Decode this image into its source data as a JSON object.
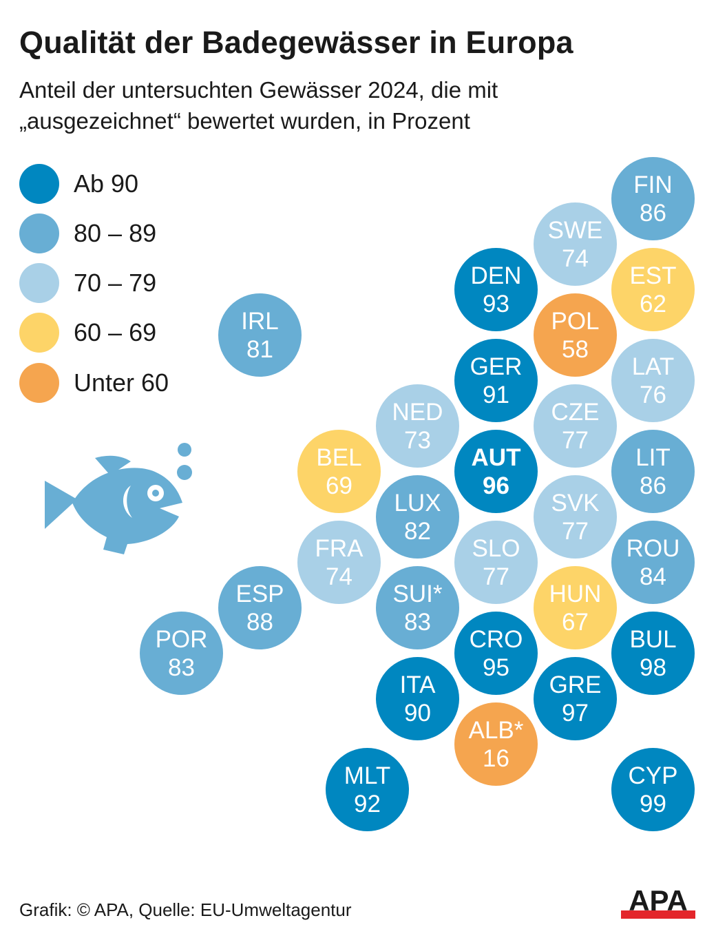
{
  "title": "Qualität der Badegewässer in Europa",
  "subtitle_line1": "Anteil der untersuchten Gewässer 2024, die mit",
  "subtitle_line2": "„ausgezeichnet“ bewertet wurden, in Prozent",
  "source": "Grafik: © APA, Quelle: EU-Umweltagentur",
  "logo_text": "APA",
  "chart_data": {
    "type": "table",
    "title": "Qualität der Badegewässer in Europa",
    "unit": "Prozent",
    "legend": [
      {
        "label": "Ab 90",
        "color": "#0087c0"
      },
      {
        "label": "80 – 89",
        "color": "#68aed4"
      },
      {
        "label": "70 – 79",
        "color": "#a9d0e7"
      },
      {
        "label": "60 – 69",
        "color": "#fdd468"
      },
      {
        "label": "Unter 60",
        "color": "#f5a54f"
      }
    ],
    "countries": [
      {
        "code": "FIN",
        "value": 86
      },
      {
        "code": "SWE",
        "value": 74
      },
      {
        "code": "DEN",
        "value": 93
      },
      {
        "code": "EST",
        "value": 62
      },
      {
        "code": "IRL",
        "value": 81
      },
      {
        "code": "POL",
        "value": 58
      },
      {
        "code": "GER",
        "value": 91
      },
      {
        "code": "LAT",
        "value": 76
      },
      {
        "code": "NED",
        "value": 73
      },
      {
        "code": "CZE",
        "value": 77
      },
      {
        "code": "BEL",
        "value": 69
      },
      {
        "code": "AUT",
        "value": 96,
        "highlight": true
      },
      {
        "code": "LIT",
        "value": 86
      },
      {
        "code": "LUX",
        "value": 82
      },
      {
        "code": "SVK",
        "value": 77
      },
      {
        "code": "FRA",
        "value": 74
      },
      {
        "code": "SLO",
        "value": 77
      },
      {
        "code": "ROU",
        "value": 84
      },
      {
        "code": "ESP",
        "value": 88
      },
      {
        "code": "SUI*",
        "value": 83
      },
      {
        "code": "HUN",
        "value": 67
      },
      {
        "code": "POR",
        "value": 83
      },
      {
        "code": "CRO",
        "value": 95
      },
      {
        "code": "BUL",
        "value": 98
      },
      {
        "code": "ITA",
        "value": 90
      },
      {
        "code": "GRE",
        "value": 97
      },
      {
        "code": "ALB*",
        "value": 16
      },
      {
        "code": "MLT",
        "value": 92
      },
      {
        "code": "CYP",
        "value": 99
      }
    ]
  }
}
